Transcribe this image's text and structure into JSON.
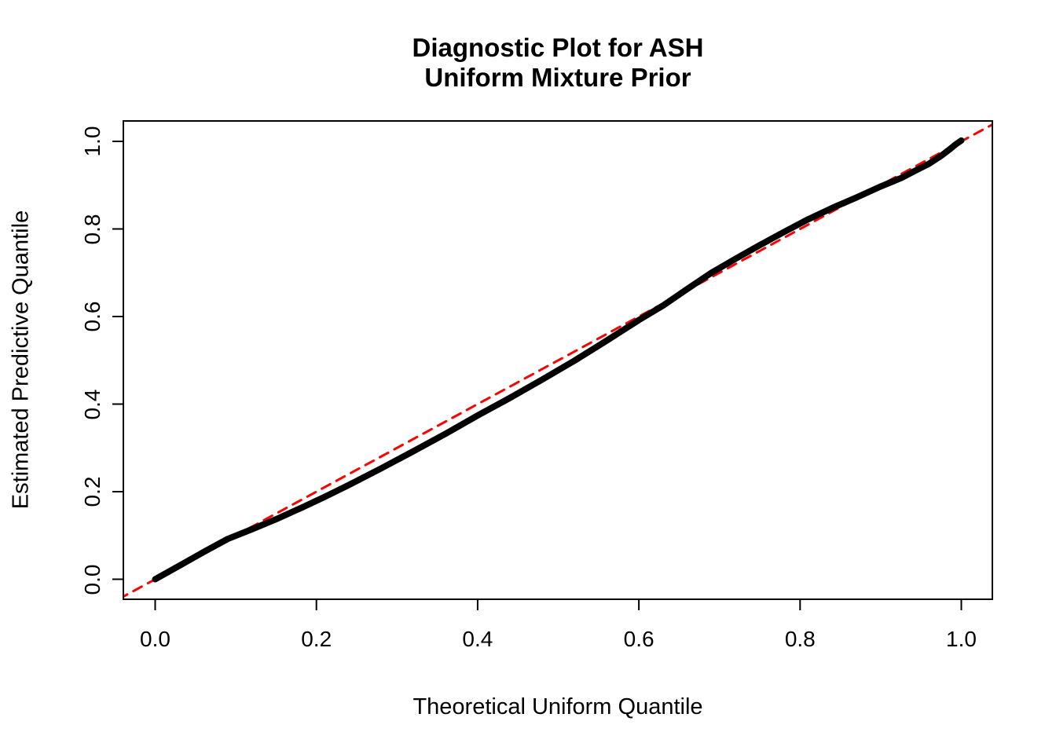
{
  "title": {
    "line1": "Diagnostic Plot for ASH",
    "line2": "Uniform Mixture Prior"
  },
  "axes": {
    "x_label": "Theoretical Uniform Quantile",
    "y_label": "Estimated Predictive Quantile",
    "x_tick_labels": [
      "0.0",
      "0.2",
      "0.4",
      "0.6",
      "0.8",
      "1.0"
    ],
    "y_tick_labels": [
      "0.0",
      "0.2",
      "0.4",
      "0.6",
      "0.8",
      "1.0"
    ]
  },
  "colors": {
    "curve": "#000000",
    "reference_line": "#FF0000",
    "text": "#000000",
    "background": "#FFFFFF"
  },
  "chart_data": {
    "type": "line",
    "title": "Diagnostic Plot for ASH\nUniform Mixture Prior",
    "xlabel": "Theoretical Uniform Quantile",
    "ylabel": "Estimated Predictive Quantile",
    "xlim": [
      -0.04,
      1.04
    ],
    "ylim": [
      -0.04,
      1.04
    ],
    "x_ticks": [
      0.0,
      0.2,
      0.4,
      0.6,
      0.8,
      1.0
    ],
    "y_ticks": [
      0.0,
      0.2,
      0.4,
      0.6,
      0.8,
      1.0
    ],
    "grid": false,
    "legend_position": "none",
    "series": [
      {
        "name": "estimated-predictive-quantile-curve",
        "style": "thick-point-curve",
        "color": "#000000",
        "x": [
          0.0,
          0.03,
          0.06,
          0.09,
          0.12,
          0.15,
          0.18,
          0.21,
          0.24,
          0.28,
          0.32,
          0.36,
          0.4,
          0.44,
          0.48,
          0.52,
          0.56,
          0.6,
          0.63,
          0.66,
          0.69,
          0.72,
          0.75,
          0.78,
          0.81,
          0.84,
          0.87,
          0.9,
          0.925,
          0.945,
          0.96,
          0.975,
          0.985,
          0.993,
          1.0
        ],
        "y": [
          0.0,
          0.031,
          0.062,
          0.092,
          0.114,
          0.137,
          0.162,
          0.188,
          0.215,
          0.253,
          0.292,
          0.332,
          0.374,
          0.414,
          0.456,
          0.499,
          0.545,
          0.592,
          0.625,
          0.663,
          0.7,
          0.732,
          0.763,
          0.793,
          0.822,
          0.848,
          0.872,
          0.897,
          0.916,
          0.935,
          0.949,
          0.967,
          0.981,
          0.993,
          1.002
        ]
      },
      {
        "name": "identity-reference-line",
        "style": "dashed-line",
        "color": "#FF0000",
        "x": [
          -0.045,
          1.045
        ],
        "y": [
          -0.045,
          1.045
        ]
      }
    ]
  }
}
